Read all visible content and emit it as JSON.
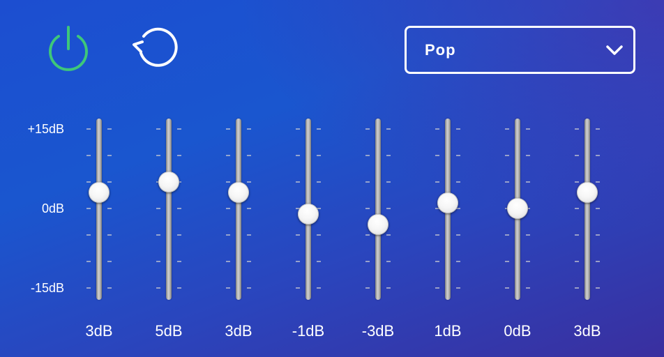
{
  "toolbar": {
    "power_icon": "power-icon",
    "reset_icon": "reset-rotate-ccw-icon",
    "power_color": "#3ec77a"
  },
  "preset": {
    "selected": "Pop",
    "chevron_icon": "chevron-down-icon"
  },
  "scale": {
    "top_label": "+15dB",
    "mid_label": "0dB",
    "bottom_label": "-15dB",
    "max_db": 15,
    "min_db": -15
  },
  "bands": [
    {
      "gain_db": 3,
      "label": "3dB"
    },
    {
      "gain_db": 5,
      "label": "5dB"
    },
    {
      "gain_db": 3,
      "label": "3dB"
    },
    {
      "gain_db": -1,
      "label": "-1dB"
    },
    {
      "gain_db": -3,
      "label": "-3dB"
    },
    {
      "gain_db": 1,
      "label": "1dB"
    },
    {
      "gain_db": 0,
      "label": "0dB"
    },
    {
      "gain_db": 3,
      "label": "3dB"
    }
  ]
}
